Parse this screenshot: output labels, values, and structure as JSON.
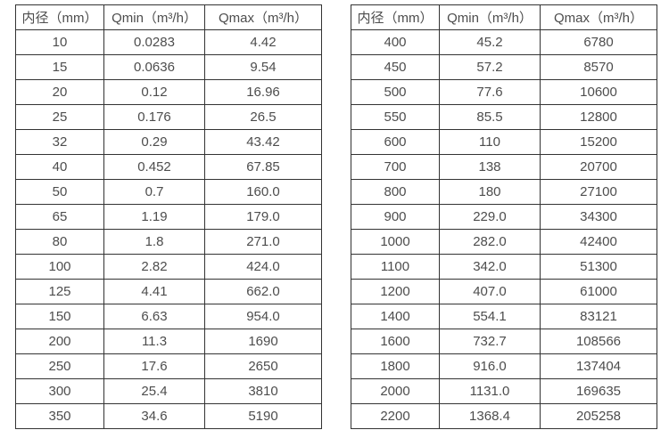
{
  "tables": [
    {
      "headers": [
        "内径（mm）",
        "Qmin（m³/h）",
        "Qmax（m³/h）"
      ],
      "rows": [
        [
          "10",
          "0.0283",
          "4.42"
        ],
        [
          "15",
          "0.0636",
          "9.54"
        ],
        [
          "20",
          "0.12",
          "16.96"
        ],
        [
          "25",
          "0.176",
          "26.5"
        ],
        [
          "32",
          "0.29",
          "43.42"
        ],
        [
          "40",
          "0.452",
          "67.85"
        ],
        [
          "50",
          "0.7",
          "160.0"
        ],
        [
          "65",
          "1.19",
          "179.0"
        ],
        [
          "80",
          "1.8",
          "271.0"
        ],
        [
          "100",
          "2.82",
          "424.0"
        ],
        [
          "125",
          "4.41",
          "662.0"
        ],
        [
          "150",
          "6.63",
          "954.0"
        ],
        [
          "200",
          "11.3",
          "1690"
        ],
        [
          "250",
          "17.6",
          "2650"
        ],
        [
          "300",
          "25.4",
          "3810"
        ],
        [
          "350",
          "34.6",
          "5190"
        ]
      ]
    },
    {
      "headers": [
        "内径（mm）",
        "Qmin（m³/h）",
        "Qmax（m³/h）"
      ],
      "rows": [
        [
          "400",
          "45.2",
          "6780"
        ],
        [
          "450",
          "57.2",
          "8570"
        ],
        [
          "500",
          "77.6",
          "10600"
        ],
        [
          "550",
          "85.5",
          "12800"
        ],
        [
          "600",
          "110",
          "15200"
        ],
        [
          "700",
          "138",
          "20700"
        ],
        [
          "800",
          "180",
          "27100"
        ],
        [
          "900",
          "229.0",
          "34300"
        ],
        [
          "1000",
          "282.0",
          "42400"
        ],
        [
          "1100",
          "342.0",
          "51300"
        ],
        [
          "1200",
          "407.0",
          "61000"
        ],
        [
          "1400",
          "554.1",
          "83121"
        ],
        [
          "1600",
          "732.7",
          "108566"
        ],
        [
          "1800",
          "916.0",
          "137404"
        ],
        [
          "2000",
          "1131.0",
          "169635"
        ],
        [
          "2200",
          "1368.4",
          "205258"
        ]
      ]
    }
  ]
}
